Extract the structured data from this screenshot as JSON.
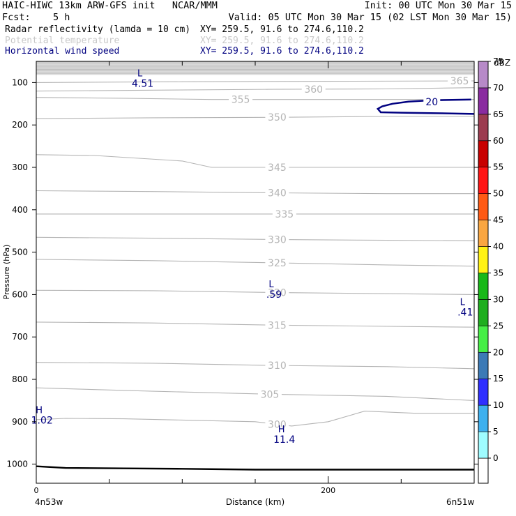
{
  "header": {
    "title_left": "HAIC-HIWC 13km ARW-GFS init   NCAR/MMM",
    "init_text": "Init: 00 UTC Mon 30 Mar 15",
    "fcst_label": "Fcst:",
    "fcst_value": "5 h",
    "valid_text": "Valid: 05 UTC Mon 30 Mar 15 (02 LST Mon 30 Mar 15)"
  },
  "fields": [
    {
      "name": "Radar reflectivity (lamda = 10 cm)",
      "xy": "XY= 259.5, 91.6 to 274.6,110.2",
      "color": "#000000"
    },
    {
      "name": "Potential temperature",
      "xy": "XY= 259.5, 91.6 to 274.6,110.2",
      "color": "#c8c8c8"
    },
    {
      "name": "Horizontal wind speed",
      "xy": "XY= 259.5, 91.6 to 274.6,110.2",
      "color": "#000080"
    }
  ],
  "chart_data": {
    "type": "line",
    "ylabel": "Pressure (hPa)",
    "xlabel": "Distance (km)",
    "x_range": [
      0,
      300
    ],
    "y_range": [
      1045,
      50
    ],
    "y_ticks": [
      100,
      200,
      300,
      400,
      500,
      600,
      700,
      800,
      900,
      1000
    ],
    "x_major_ticks": [
      0,
      200
    ],
    "x_minor_ticks": [
      50,
      100,
      150,
      250
    ],
    "x_start_label": "4n53w",
    "x_end_label": "6n51w",
    "theta_contours": [
      {
        "value": "300",
        "points": [
          [
            0,
            895
          ],
          [
            20,
            892
          ],
          [
            60,
            893
          ],
          [
            100,
            896
          ],
          [
            150,
            900
          ],
          [
            175,
            910
          ],
          [
            200,
            900
          ],
          [
            225,
            875
          ],
          [
            260,
            880
          ],
          [
            300,
            880
          ]
        ],
        "label_x": 165
      },
      {
        "value": "305",
        "points": [
          [
            0,
            820
          ],
          [
            80,
            828
          ],
          [
            160,
            835
          ],
          [
            240,
            840
          ],
          [
            300,
            850
          ]
        ],
        "label_x": 160
      },
      {
        "value": "310",
        "points": [
          [
            0,
            760
          ],
          [
            80,
            762
          ],
          [
            160,
            767
          ],
          [
            240,
            770
          ],
          [
            300,
            775
          ]
        ],
        "label_x": 165
      },
      {
        "value": "315",
        "points": [
          [
            0,
            665
          ],
          [
            80,
            667
          ],
          [
            160,
            672
          ],
          [
            240,
            675
          ],
          [
            300,
            677
          ]
        ],
        "label_x": 165
      },
      {
        "value": "320",
        "points": [
          [
            0,
            590
          ],
          [
            80,
            591
          ],
          [
            160,
            595
          ],
          [
            240,
            598
          ],
          [
            300,
            600
          ]
        ],
        "label_x": 165
      },
      {
        "value": "325",
        "points": [
          [
            0,
            517
          ],
          [
            80,
            520
          ],
          [
            160,
            525
          ],
          [
            240,
            530
          ],
          [
            300,
            533
          ]
        ],
        "label_x": 165
      },
      {
        "value": "330",
        "points": [
          [
            0,
            465
          ],
          [
            80,
            467
          ],
          [
            160,
            470
          ],
          [
            240,
            472
          ],
          [
            300,
            473
          ]
        ],
        "label_x": 165
      },
      {
        "value": "335",
        "points": [
          [
            0,
            410
          ],
          [
            80,
            410
          ],
          [
            160,
            410
          ],
          [
            240,
            410
          ],
          [
            300,
            410
          ]
        ],
        "label_x": 170
      },
      {
        "value": "340",
        "points": [
          [
            0,
            355
          ],
          [
            80,
            357
          ],
          [
            160,
            360
          ],
          [
            240,
            362
          ],
          [
            300,
            362
          ]
        ],
        "label_x": 165
      },
      {
        "value": "345",
        "points": [
          [
            0,
            270
          ],
          [
            40,
            272
          ],
          [
            100,
            285
          ],
          [
            120,
            300
          ],
          [
            160,
            300
          ],
          [
            240,
            300
          ],
          [
            300,
            300
          ]
        ],
        "label_x": 165
      },
      {
        "value": "350",
        "points": [
          [
            0,
            185
          ],
          [
            80,
            183
          ],
          [
            160,
            182
          ],
          [
            240,
            180
          ],
          [
            300,
            180
          ]
        ],
        "label_x": 165
      },
      {
        "value": "355",
        "points": [
          [
            0,
            135
          ],
          [
            60,
            137
          ],
          [
            120,
            140
          ],
          [
            180,
            140
          ],
          [
            240,
            140
          ],
          [
            300,
            140
          ]
        ],
        "label_x": 140
      },
      {
        "value": "360",
        "points": [
          [
            0,
            120
          ],
          [
            80,
            118
          ],
          [
            160,
            116
          ],
          [
            240,
            115
          ],
          [
            300,
            112
          ]
        ],
        "label_x": 190
      },
      {
        "value": "365",
        "points": [
          [
            0,
            100
          ],
          [
            100,
            98
          ],
          [
            200,
            97
          ],
          [
            300,
            96
          ]
        ],
        "label_x": 290
      }
    ],
    "wind_contours": [
      {
        "value": "20",
        "points": [
          [
            298,
            140
          ],
          [
            270,
            142
          ],
          [
            255,
            145
          ],
          [
            244,
            150
          ],
          [
            237,
            156
          ],
          [
            234,
            162
          ],
          [
            236,
            170
          ],
          [
            250,
            171
          ],
          [
            270,
            172
          ],
          [
            300,
            174
          ]
        ],
        "label_x": 271
      }
    ],
    "surface_line": [
      [
        0,
        1005
      ],
      [
        20,
        1009
      ],
      [
        60,
        1010
      ],
      [
        100,
        1011
      ],
      [
        150,
        1013
      ],
      [
        200,
        1013
      ],
      [
        250,
        1013
      ],
      [
        300,
        1013
      ]
    ],
    "extrema": [
      {
        "type": "L",
        "value": "4.51",
        "x": 71,
        "p": 85
      },
      {
        "type": "L",
        "value": ".59",
        "x": 161,
        "p": 583
      },
      {
        "type": "L",
        "value": ".41",
        "x": 292,
        "p": 625
      },
      {
        "type": "H",
        "value": "1.02",
        "x": 2,
        "p": 880
      },
      {
        "type": "H",
        "value": "11.4",
        "x": 168,
        "p": 925
      }
    ],
    "colorbar": {
      "unit": "dBZ",
      "levels": [
        "0",
        "5",
        "10",
        "15",
        "20",
        "25",
        "30",
        "35",
        "40",
        "45",
        "50",
        "55",
        "60",
        "65",
        "70",
        "75"
      ],
      "colors": [
        "#ffffff",
        "#9ffcff",
        "#3eb0ee",
        "#2f2fff",
        "#3c7ab6",
        "#46ee46",
        "#1fae1f",
        "#18b818",
        "#fff214",
        "#f9a641",
        "#ff5a14",
        "#ff1414",
        "#c80000",
        "#9c3c50",
        "#8a2ba0",
        "#b78ac8"
      ]
    }
  }
}
